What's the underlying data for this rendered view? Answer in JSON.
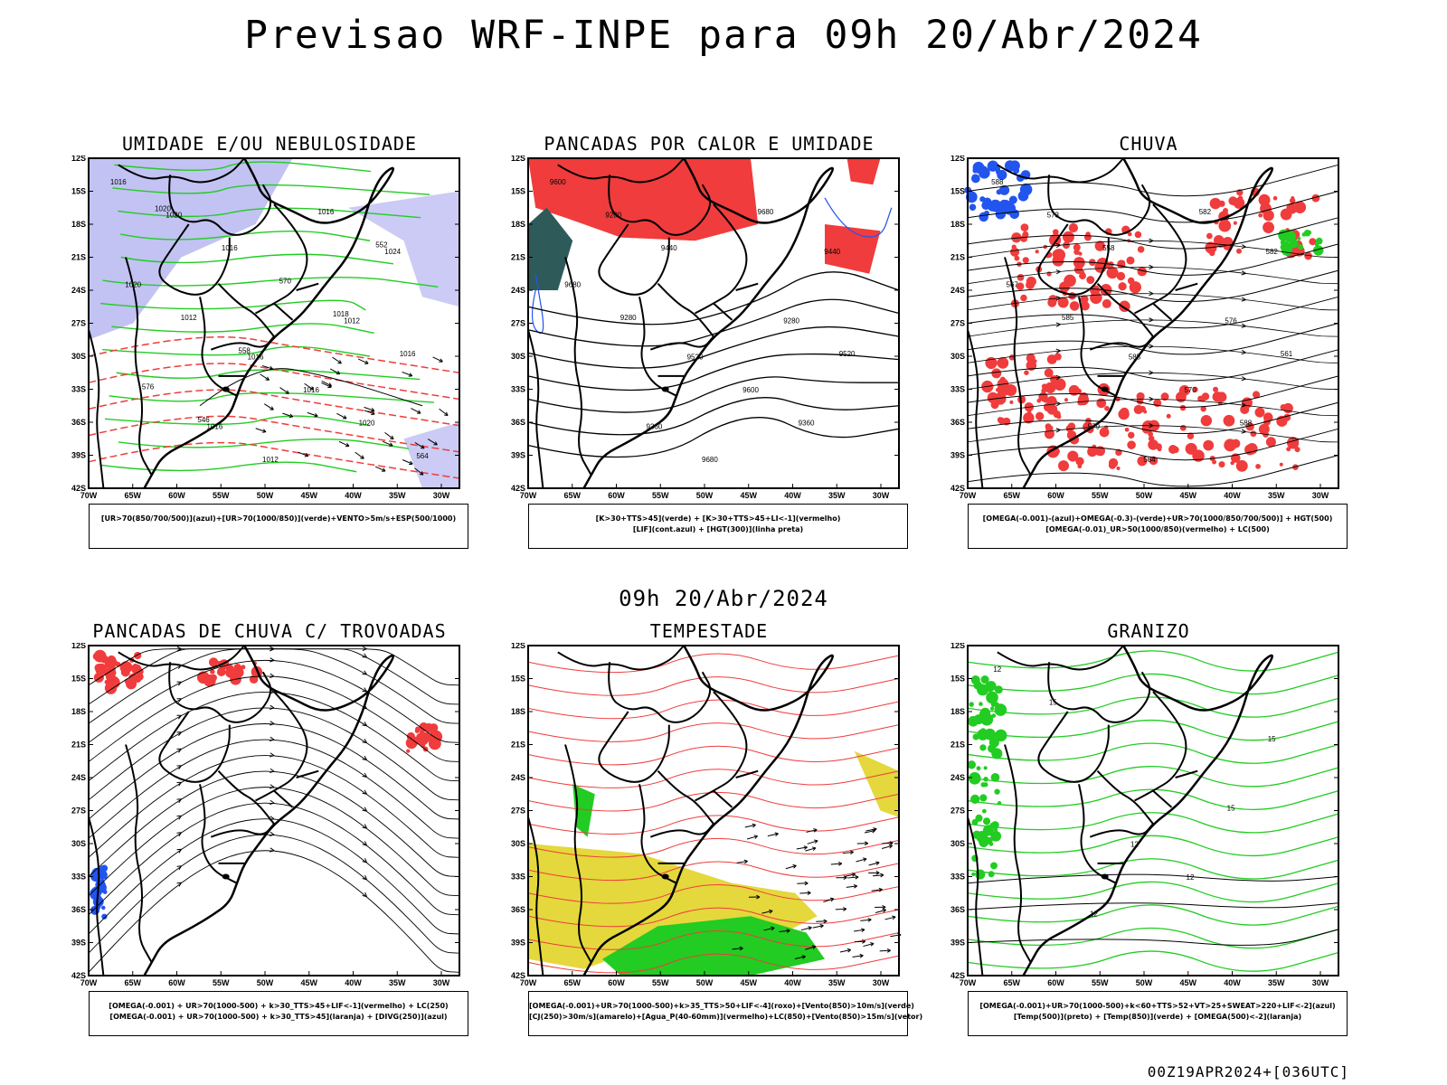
{
  "title": "Previsao WRF-INPE  para 09h 20/Abr/2024",
  "mid_title": "09h 20/Abr/2024",
  "footer": "00Z19APR2024+[036UTC]",
  "axes": {
    "lat_labels": [
      "12S",
      "15S",
      "18S",
      "21S",
      "24S",
      "27S",
      "30S",
      "33S",
      "36S",
      "39S",
      "42S"
    ],
    "lon_labels": [
      "70W",
      "65W",
      "60W",
      "55W",
      "50W",
      "45W",
      "40W",
      "35W",
      "30W"
    ]
  },
  "colors": {
    "red": "#f03c3c",
    "green": "#22cc22",
    "blue": "#2255ee",
    "lavender": "#a8a8ee",
    "yellow": "#e4d83c",
    "teal": "#2e5a5a",
    "orange": "#f08a28",
    "black": "#000000"
  },
  "panels": [
    {
      "title": "UMIDADE E/OU NEBULOSIDADE",
      "legend": [
        "[UR>70(850/700/500)](azul)+[UR>70(1000/850)](verde)+VENTO>5m/s+ESP(500/1000)"
      ],
      "labels": [
        "1016",
        "1016",
        "1024",
        "1016",
        "1012",
        "1020",
        "1016",
        "1020",
        "1012",
        "1016",
        "1016",
        "1020",
        "1012",
        "1016",
        "576",
        "570",
        "564",
        "558",
        "552",
        "546",
        "1018",
        "1020"
      ]
    },
    {
      "title": "PANCADAS POR CALOR E UMIDADE",
      "legend": [
        "[K>30+TTS>45](verde) + [K>30+TTS>45+LI<-1](vermelho)",
        "[LIF](cont.azul) + [HGT(300)](linha preta)"
      ],
      "labels": [
        "9600",
        "9520",
        "9440",
        "9360",
        "9280",
        "9200",
        "9600",
        "9680",
        "9680",
        "9520",
        "9440",
        "9360",
        "9280",
        "9680"
      ]
    },
    {
      "title": "CHUVA",
      "legend": [
        "[OMEGA(-0.001)-(azul)+OMEGA(-0.3)-(verde)+UR>70(1000/850/700/500)] + HGT(500)",
        "[OMEGA(-0.01)_UR>50(1000/850)(vermelho) + LC(500)"
      ],
      "labels": [
        "588",
        "585",
        "582",
        "579",
        "576",
        "573",
        "570",
        "567",
        "564",
        "561",
        "558",
        "588",
        "585",
        "582"
      ]
    },
    {
      "title": "PANCADAS DE CHUVA C/ TROVOADAS",
      "legend": [
        "[OMEGA(-0.001) + UR>70(1000-500) + k>30_TTS>45+LIF<-1](vermelho) + LC(250)",
        "[OMEGA(-0.001) + UR>70(1000-500) + k>30_TTS>45](laranja) + [DIVG(250)](azul)"
      ],
      "labels": []
    },
    {
      "title": "TEMPESTADE",
      "legend": [
        "[OMEGA(-0.001)+UR>70(1000-500)+k>35_TTS>50+LIF<-4](roxo)+[Vento(850)>10m/s](verde)",
        "[CJ(250)>30m/s](amarelo)+[Agua_P(40-60mm)](vermelho)+LC(850)+[Vento(850)>15m/s](vetor)"
      ],
      "labels": []
    },
    {
      "title": "GRANIZO",
      "legend": [
        "[OMEGA(-0.001)+UR>70(1000-500)+k<60+TTS>52+VT>25+SWEAT>220+LIF<-2](azul)",
        "[Temp(500)](preto) + [Temp(850)](verde) + [OMEGA(500)<-2](laranja)"
      ],
      "labels": [
        "12",
        "12",
        "15",
        "12",
        "15",
        "15",
        "12"
      ]
    }
  ]
}
